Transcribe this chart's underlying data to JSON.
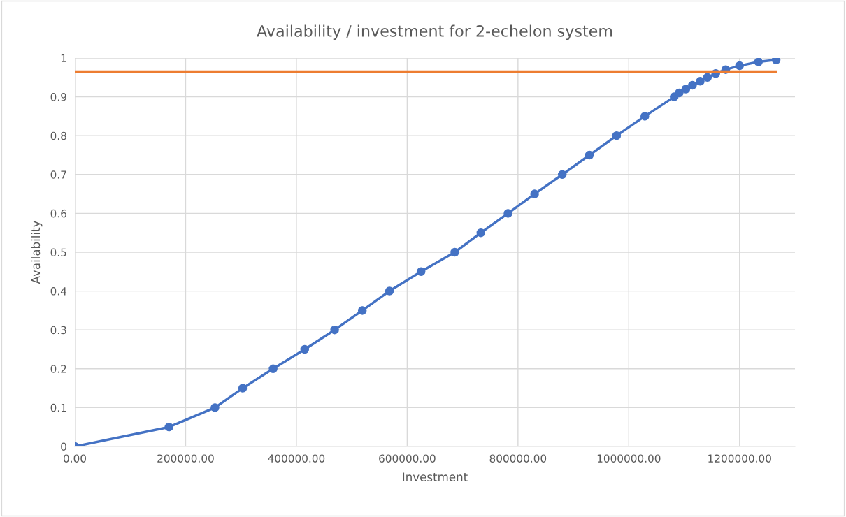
{
  "chart_data": {
    "type": "line",
    "title": "Availability / investment for 2-echelon system",
    "xlabel": "Investment",
    "ylabel": "Availability",
    "x": [
      0,
      170000,
      253000,
      303000,
      358000,
      415000,
      469000,
      519000,
      568000,
      625000,
      686000,
      733000,
      782000,
      830000,
      880000,
      929000,
      978000,
      1029000,
      1082000,
      1091000,
      1103000,
      1115000,
      1129000,
      1142000,
      1157000,
      1175000,
      1200000,
      1234000,
      1266000
    ],
    "series": [
      {
        "color": "#4472c4",
        "marker": "circle",
        "values": [
          0,
          0.05,
          0.1,
          0.15,
          0.2,
          0.25,
          0.3,
          0.35,
          0.4,
          0.45,
          0.5,
          0.55,
          0.6,
          0.65,
          0.7,
          0.75,
          0.8,
          0.85,
          0.9,
          0.91,
          0.92,
          0.93,
          0.94,
          0.95,
          0.96,
          0.97,
          0.98,
          0.99,
          0.995
        ]
      },
      {
        "color": "#ed7d31",
        "marker": "none",
        "x": [
          0,
          1266000
        ],
        "values": [
          0.965,
          0.965
        ]
      }
    ],
    "xlim": [
      0,
      1300000
    ],
    "xticks": [
      {
        "value": 0,
        "label": "0.00"
      },
      {
        "value": 200000,
        "label": "200000.00"
      },
      {
        "value": 400000,
        "label": "400000.00"
      },
      {
        "value": 600000,
        "label": "600000.00"
      },
      {
        "value": 800000,
        "label": "800000.00"
      },
      {
        "value": 1000000,
        "label": "1000000.00"
      },
      {
        "value": 1200000,
        "label": "1200000.00"
      }
    ],
    "ylim": [
      0,
      1
    ],
    "yticks": [
      0,
      0.1,
      0.2,
      0.3,
      0.4,
      0.5,
      0.6,
      0.7,
      0.8,
      0.9,
      1
    ],
    "grid": true,
    "line_style": "solid"
  }
}
